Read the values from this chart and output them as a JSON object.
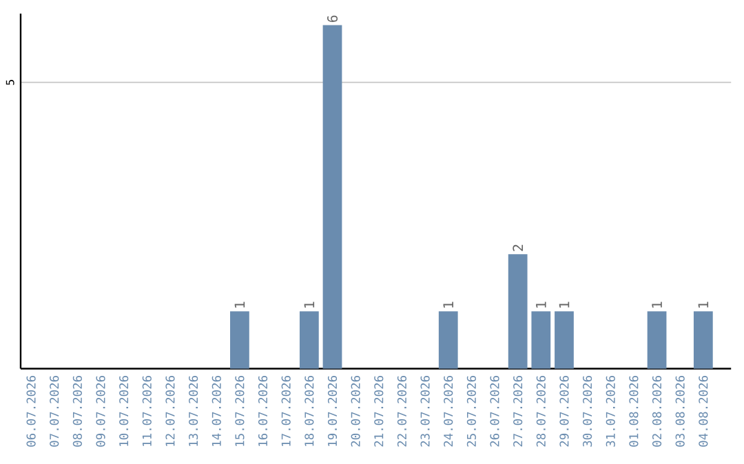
{
  "chart_data": {
    "type": "bar",
    "categories": [
      "06.07.2026",
      "07.07.2026",
      "08.07.2026",
      "09.07.2026",
      "10.07.2026",
      "11.07.2026",
      "12.07.2026",
      "13.07.2026",
      "14.07.2026",
      "15.07.2026",
      "16.07.2026",
      "17.07.2026",
      "18.07.2026",
      "19.07.2026",
      "20.07.2026",
      "21.07.2026",
      "22.07.2026",
      "23.07.2026",
      "24.07.2026",
      "25.07.2026",
      "26.07.2026",
      "27.07.2026",
      "28.07.2026",
      "29.07.2026",
      "30.07.2026",
      "31.07.2026",
      "01.08.2026",
      "02.08.2026",
      "03.08.2026",
      "04.08.2026"
    ],
    "values": [
      0,
      0,
      0,
      0,
      0,
      0,
      0,
      0,
      0,
      1,
      0,
      0,
      1,
      6,
      0,
      0,
      0,
      0,
      1,
      0,
      0,
      2,
      1,
      1,
      0,
      0,
      0,
      1,
      0,
      1
    ],
    "value_labels": [
      null,
      null,
      null,
      null,
      null,
      null,
      null,
      null,
      null,
      "1",
      null,
      null,
      "1",
      "6",
      null,
      null,
      null,
      null,
      "1",
      null,
      null,
      "2",
      "1",
      "1",
      null,
      null,
      null,
      "1",
      null,
      "1"
    ],
    "color": "#6a8caf",
    "ylim": [
      0,
      6.2
    ],
    "yticks": [
      5
    ],
    "grid": "y"
  }
}
